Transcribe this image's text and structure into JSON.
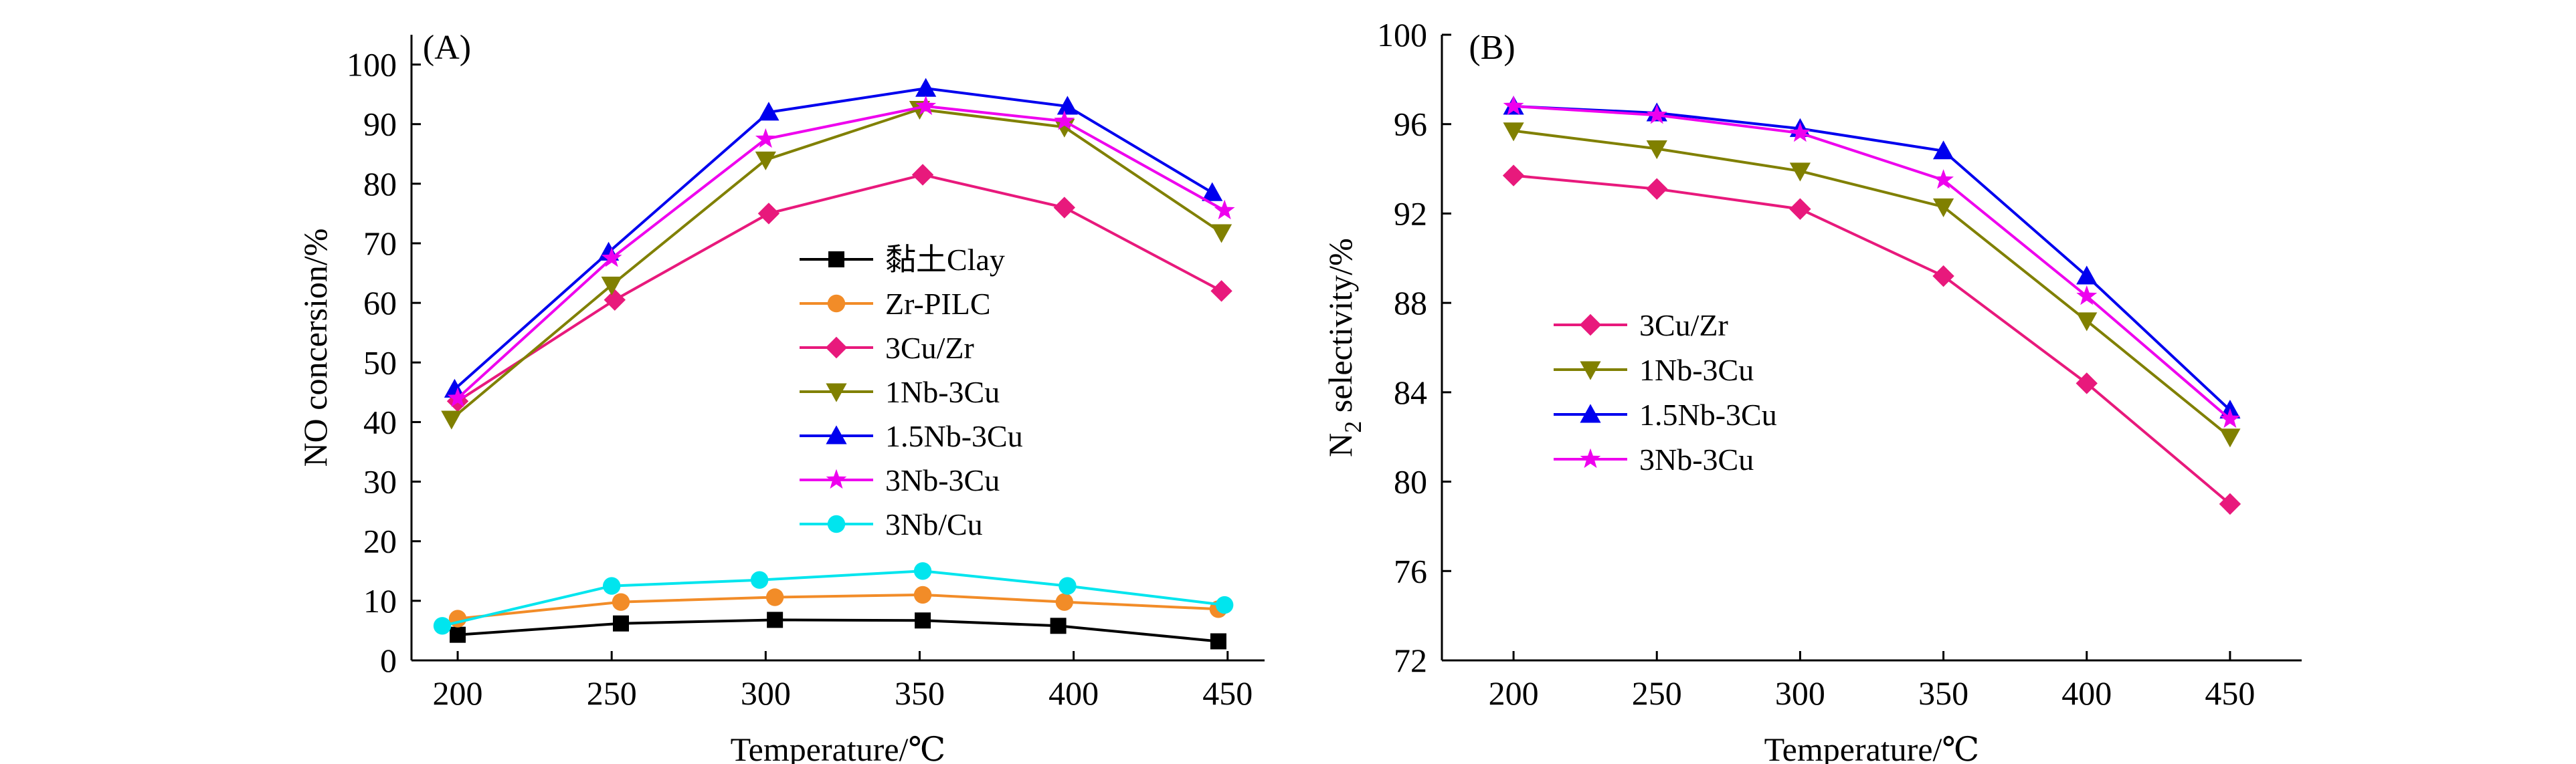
{
  "chart_data": [
    {
      "type": "line",
      "panel_label": "(A)",
      "xlabel": "Temperature/℃",
      "ylabel": "NO concersion/%",
      "xlim": [
        185,
        462
      ],
      "ylim": [
        0,
        105
      ],
      "x_ticks": [
        200,
        250,
        300,
        350,
        400,
        450
      ],
      "y_ticks": [
        0,
        10,
        20,
        30,
        40,
        50,
        60,
        70,
        80,
        90,
        100
      ],
      "grid": false,
      "legend_position": "center",
      "series": [
        {
          "name": "黏土Clay",
          "marker": "square",
          "color": "#000000",
          "x": [
            200,
            253,
            303,
            351,
            395,
            447
          ],
          "y": [
            4.3,
            6.2,
            6.8,
            6.7,
            5.8,
            3.2
          ]
        },
        {
          "name": "Zr-PILC",
          "marker": "circle",
          "color": "#f28c28",
          "x": [
            200,
            253,
            303,
            351,
            397,
            447
          ],
          "y": [
            7.0,
            9.8,
            10.6,
            11.0,
            9.8,
            8.6
          ]
        },
        {
          "name": "3Cu/Zr",
          "marker": "diamond",
          "color": "#e8197c",
          "x": [
            200,
            251,
            301,
            351,
            397,
            448
          ],
          "y": [
            43.5,
            60.5,
            75.0,
            81.5,
            76.0,
            62.0
          ]
        },
        {
          "name": "1Nb-3Cu",
          "marker": "triangle-down",
          "color": "#808000",
          "x": [
            198,
            250,
            300,
            350,
            397,
            448
          ],
          "y": [
            40.5,
            63.0,
            84.0,
            92.5,
            89.5,
            71.8
          ]
        },
        {
          "name": "1.5Nb-3Cu",
          "marker": "triangle-up",
          "color": "#0000ee",
          "x": [
            199,
            249,
            301,
            352,
            398,
            445
          ],
          "y": [
            45.5,
            68.5,
            92.0,
            96.0,
            93.0,
            78.5
          ]
        },
        {
          "name": "3Nb-3Cu",
          "marker": "star",
          "color": "#ee00ee",
          "x": [
            200,
            250,
            300,
            352,
            397,
            449
          ],
          "y": [
            44.0,
            67.5,
            87.5,
            93.0,
            90.5,
            75.5
          ]
        },
        {
          "name": "3Nb/Cu",
          "marker": "circle",
          "color": "#00e5ee",
          "x": [
            195,
            250,
            298,
            351,
            398,
            449
          ],
          "y": [
            5.8,
            12.5,
            13.5,
            15.0,
            12.5,
            9.3
          ]
        }
      ]
    },
    {
      "type": "line",
      "panel_label": "(B)",
      "xlabel": "Temperature/℃",
      "ylabel_main": "N",
      "ylabel_sub": "2",
      "ylabel_rest": " selectivity/%",
      "xlim": [
        175,
        475
      ],
      "ylim": [
        72,
        100
      ],
      "x_ticks": [
        200,
        250,
        300,
        350,
        400,
        450
      ],
      "y_ticks": [
        72,
        76,
        80,
        84,
        88,
        92,
        96,
        100
      ],
      "grid": false,
      "legend_position": "center-left",
      "series": [
        {
          "name": "3Cu/Zr",
          "marker": "diamond",
          "color": "#e8197c",
          "x": [
            200,
            250,
            300,
            350,
            400,
            450
          ],
          "y": [
            93.7,
            93.1,
            92.2,
            89.2,
            84.4,
            79.0
          ]
        },
        {
          "name": "1Nb-3Cu",
          "marker": "triangle-down",
          "color": "#808000",
          "x": [
            200,
            250,
            300,
            350,
            400,
            450
          ],
          "y": [
            95.7,
            94.9,
            93.9,
            92.3,
            87.2,
            82.0
          ]
        },
        {
          "name": "1.5Nb-3Cu",
          "marker": "triangle-up",
          "color": "#0000ee",
          "x": [
            200,
            250,
            300,
            350,
            400,
            450
          ],
          "y": [
            96.8,
            96.5,
            95.8,
            94.8,
            89.2,
            83.2
          ]
        },
        {
          "name": "3Nb-3Cu",
          "marker": "star",
          "color": "#ee00ee",
          "x": [
            200,
            250,
            300,
            350,
            400,
            450
          ],
          "y": [
            96.8,
            96.4,
            95.6,
            93.5,
            88.3,
            82.8
          ]
        }
      ]
    }
  ]
}
